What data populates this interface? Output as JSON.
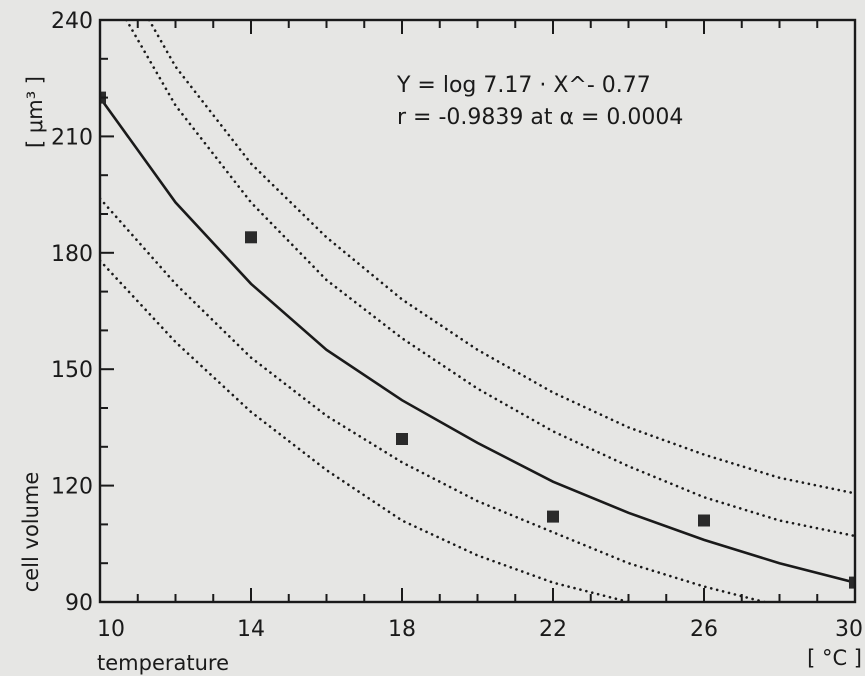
{
  "chart_data": {
    "type": "scatter",
    "xlabel": "temperature",
    "xunit": "[ °C ]",
    "ylabel": "cell volume",
    "yunit": "[ μm³ ]",
    "xlim": [
      10,
      30
    ],
    "ylim": [
      90,
      240
    ],
    "x_ticks": [
      10,
      14,
      18,
      22,
      26,
      30
    ],
    "y_ticks": [
      90,
      120,
      150,
      180,
      210,
      240
    ],
    "grid": false,
    "annotations": [
      "Y = log 7.17 · X^- 0.77",
      "r = -0.9839 at α = 0.0004"
    ],
    "points": [
      {
        "x": 10,
        "y": 220
      },
      {
        "x": 14,
        "y": 184
      },
      {
        "x": 18,
        "y": 132
      },
      {
        "x": 22,
        "y": 112
      },
      {
        "x": 26,
        "y": 111
      },
      {
        "x": 30,
        "y": 95
      }
    ],
    "fit_curve": {
      "style": "solid",
      "points": [
        [
          10,
          220
        ],
        [
          12,
          193
        ],
        [
          14,
          172
        ],
        [
          16,
          155
        ],
        [
          18,
          142
        ],
        [
          20,
          131
        ],
        [
          22,
          121
        ],
        [
          24,
          113
        ],
        [
          26,
          106
        ],
        [
          28,
          100
        ],
        [
          30,
          95
        ]
      ]
    },
    "confidence_bands": [
      {
        "style": "dotted",
        "points": [
          [
            11.3,
            240
          ],
          [
            12,
            228
          ],
          [
            14,
            203
          ],
          [
            16,
            184
          ],
          [
            18,
            168
          ],
          [
            20,
            155
          ],
          [
            22,
            144
          ],
          [
            24,
            135
          ],
          [
            26,
            128
          ],
          [
            28,
            122
          ],
          [
            30,
            118
          ]
        ]
      },
      {
        "style": "dotted",
        "points": [
          [
            10.7,
            240
          ],
          [
            12,
            218
          ],
          [
            14,
            193
          ],
          [
            16,
            173
          ],
          [
            18,
            158
          ],
          [
            20,
            145
          ],
          [
            22,
            134
          ],
          [
            24,
            125
          ],
          [
            26,
            117
          ],
          [
            28,
            111
          ],
          [
            30,
            107
          ]
        ]
      },
      {
        "style": "dotted",
        "points": [
          [
            10,
            194
          ],
          [
            12,
            172
          ],
          [
            14,
            153
          ],
          [
            16,
            138
          ],
          [
            18,
            126
          ],
          [
            20,
            116
          ],
          [
            22,
            108
          ],
          [
            24,
            100
          ],
          [
            26,
            94
          ],
          [
            28,
            89
          ]
        ]
      },
      {
        "style": "dotted",
        "points": [
          [
            10,
            178
          ],
          [
            12,
            157
          ],
          [
            14,
            139
          ],
          [
            16,
            124
          ],
          [
            18,
            111
          ],
          [
            20,
            102
          ],
          [
            22,
            95
          ],
          [
            24,
            90
          ]
        ]
      }
    ]
  }
}
